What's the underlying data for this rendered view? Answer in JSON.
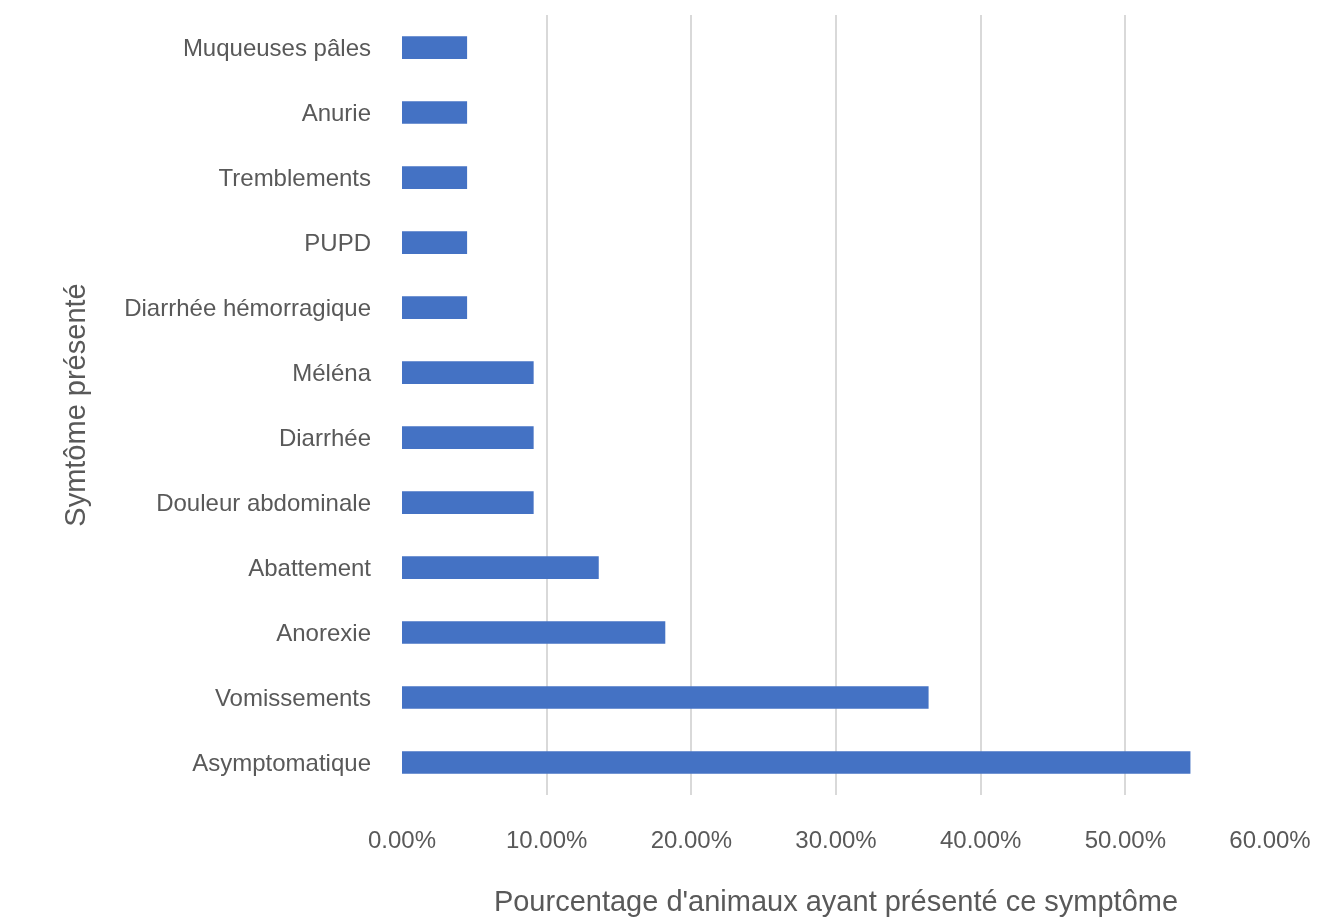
{
  "chart_data": {
    "type": "bar",
    "orientation": "horizontal",
    "categories": [
      "Muqueuses pâles",
      "Anurie",
      "Tremblements",
      "PUPD",
      "Diarrhée hémorragique",
      "Méléna",
      "Diarrhée",
      "Douleur abdominale",
      "Abattement",
      "Anorexie",
      "Vomissements",
      "Asymptomatique"
    ],
    "values": [
      4.5,
      4.5,
      4.5,
      4.5,
      4.5,
      9.1,
      9.1,
      9.1,
      13.6,
      18.2,
      36.4,
      54.5
    ],
    "color": "#4472c4",
    "xlabel": "Pourcentage d'animaux ayant présenté ce symptôme",
    "ylabel": "Symtôme présenté",
    "xlim": [
      0,
      60
    ],
    "xticks": [
      {
        "value": 0,
        "label": "0.00%"
      },
      {
        "value": 10,
        "label": "10.00%"
      },
      {
        "value": 20,
        "label": "20.00%"
      },
      {
        "value": 30,
        "label": "30.00%"
      },
      {
        "value": 40,
        "label": "40.00%"
      },
      {
        "value": 50,
        "label": "50.00%"
      },
      {
        "value": 60,
        "label": "60.00%"
      }
    ],
    "grid": "x"
  }
}
